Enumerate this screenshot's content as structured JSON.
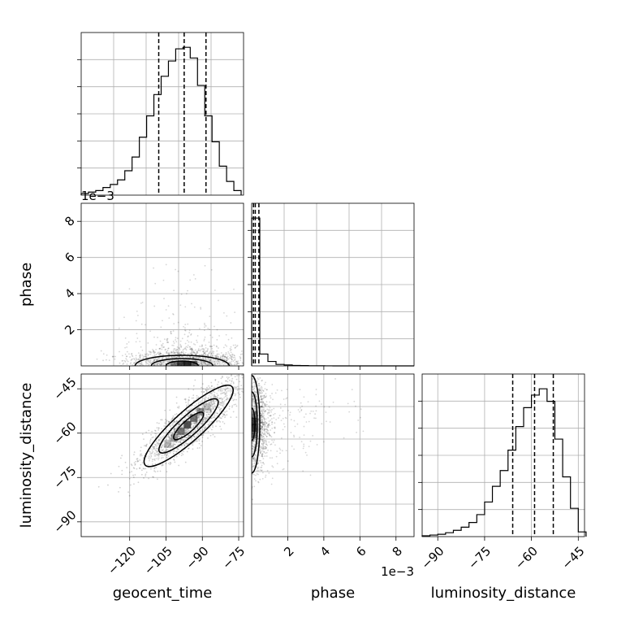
{
  "chart_data": {
    "type": "corner",
    "parameters": [
      "geocent_time",
      "phase",
      "luminosity_distance"
    ],
    "grid": true,
    "panels": [
      {
        "id": "hist-geocent_time",
        "type": "histogram",
        "x_param": "geocent_time",
        "xlim": [
          -140,
          -73
        ],
        "bin_edges": [
          -140,
          -137,
          -134,
          -131,
          -128,
          -125,
          -122,
          -119,
          -116,
          -113,
          -110,
          -107,
          -104,
          -101,
          -98,
          -95,
          -92,
          -89,
          -86,
          -83,
          -80,
          -77,
          -74
        ],
        "counts": [
          1,
          2,
          3,
          5,
          7,
          10,
          16,
          25,
          38,
          52,
          66,
          78,
          88,
          96,
          97,
          90,
          72,
          52,
          35,
          19,
          9,
          3
        ],
        "quantiles": [
          -108,
          -97.5,
          -88.5
        ]
      },
      {
        "id": "scatter-geocent_time-phase",
        "type": "scatter_density",
        "x_param": "geocent_time",
        "y_param": "phase",
        "xlim": [
          -140,
          -73
        ],
        "ylim": [
          0,
          0.009
        ],
        "y_ticks": [
          0.002,
          0.004,
          0.006,
          0.008
        ],
        "y_tick_labels": [
          "2",
          "4",
          "6",
          "8"
        ],
        "y_offset_label": "1e−3",
        "contour_levels": 3,
        "center": [
          -97,
          0.0002
        ]
      },
      {
        "id": "hist-phase",
        "type": "histogram",
        "x_param": "phase",
        "xlim": [
          0,
          0.009
        ],
        "bin_edges": [
          0,
          0.00045,
          0.0009,
          0.00135,
          0.0018,
          0.00225,
          0.0027,
          0.00315,
          0.0036,
          0.00405,
          0.0045,
          0.00495,
          0.0054,
          0.00585,
          0.0063,
          0.00675,
          0.0072,
          0.00765,
          0.0081,
          0.00855,
          0.009
        ],
        "counts": [
          100,
          8,
          3,
          1,
          0.6,
          0.3,
          0.2,
          0.1,
          0.05,
          0.03,
          0,
          0,
          0,
          0,
          0,
          0,
          0,
          0,
          0,
          0
        ],
        "quantiles": [
          0.0001,
          0.0002,
          0.0004
        ]
      },
      {
        "id": "scatter-geocent_time-luminosity_distance",
        "type": "scatter_density",
        "x_param": "geocent_time",
        "y_param": "luminosity_distance",
        "xlim": [
          -140,
          -73
        ],
        "ylim": [
          -95,
          -40
        ],
        "x_ticks": [
          -120,
          -105,
          -90,
          -75
        ],
        "x_tick_labels": [
          "−120",
          "−105",
          "−90",
          "−75"
        ],
        "y_ticks": [
          -90,
          -75,
          -60,
          -45
        ],
        "y_tick_labels": [
          "−90",
          "−75",
          "−60",
          "−45"
        ],
        "contour_levels": 3,
        "center": [
          -95,
          -57
        ]
      },
      {
        "id": "scatter-phase-luminosity_distance",
        "type": "scatter_density",
        "x_param": "phase",
        "y_param": "luminosity_distance",
        "xlim": [
          0,
          0.009
        ],
        "ylim": [
          -95,
          -40
        ],
        "x_ticks": [
          0.002,
          0.004,
          0.006,
          0.008
        ],
        "x_tick_labels": [
          "2",
          "4",
          "6",
          "8"
        ],
        "x_offset_label": "1e−3",
        "contour_levels": 3,
        "center": [
          0.0002,
          -57
        ]
      },
      {
        "id": "hist-luminosity_distance",
        "type": "histogram",
        "x_param": "luminosity_distance",
        "xlim": [
          -95,
          -43
        ],
        "bin_edges": [
          -95,
          -92.5,
          -90,
          -87.5,
          -85,
          -82.5,
          -80,
          -77.5,
          -75,
          -72.5,
          -70,
          -67.5,
          -65,
          -62.5,
          -60,
          -57.5,
          -55,
          -52.5,
          -50,
          -47.5,
          -45,
          -42.5
        ],
        "counts": [
          0.5,
          1,
          1.5,
          2.5,
          4,
          6,
          9,
          14,
          22,
          32,
          42,
          55,
          70,
          82,
          90,
          94,
          86,
          62,
          38,
          18,
          3
        ],
        "x_ticks": [
          -90,
          -75,
          -60,
          -45
        ],
        "x_tick_labels": [
          "−90",
          "−75",
          "−60",
          "−45"
        ],
        "quantiles": [
          -66,
          -59,
          -53
        ]
      }
    ]
  }
}
